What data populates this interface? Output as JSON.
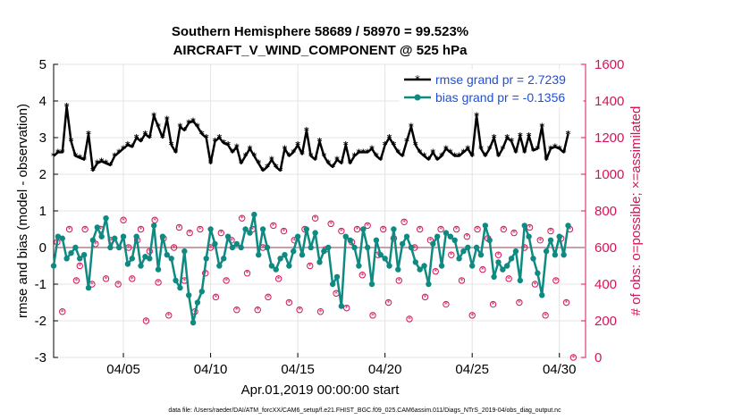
{
  "colors": {
    "rmse": "#000000",
    "bias": "#0f8a82",
    "obs": "#d4145a",
    "zero": "#c8a0a8",
    "legend_text": "#1f4fd8",
    "right_axis": "#d4145a"
  },
  "footer": "data file: /Users/raeder/DAI/ATM_forcXX/CAM6_setup/f.e21.FHIST_BGC.f09_025.CAM6assim.011/Diags_NTrS_2019-04/obs_diag_output.nc",
  "chart_data": {
    "type": "line",
    "title": "Southern Hemisphere 58689 / 58970 = 99.523%",
    "subtitle": "AIRCRAFT_V_WIND_COMPONENT @ 525 hPa",
    "xlabel": "Apr.01,2019 00:00:00 start",
    "ylabel": "rmse and bias (model - observation)",
    "y2label": "# of obs: o=possible; ×=assimilated",
    "xlim": [
      1,
      31.5
    ],
    "ylim": [
      -3,
      5
    ],
    "y2lim": [
      0,
      1600
    ],
    "x_ticks": [
      5,
      10,
      15,
      20,
      25,
      30
    ],
    "x_tick_labels": [
      "04/05",
      "04/10",
      "04/15",
      "04/20",
      "04/25",
      "04/30"
    ],
    "y_ticks": [
      -3,
      -2,
      -1,
      0,
      1,
      2,
      3,
      4,
      5
    ],
    "y2_ticks": [
      0,
      200,
      400,
      600,
      800,
      1000,
      1200,
      1400,
      1600
    ],
    "legend": [
      {
        "label": "rmse grand pr = 2.7239",
        "series": "rmse"
      },
      {
        "label": "bias grand pr = -0.1356",
        "series": "bias"
      }
    ],
    "series": [
      {
        "name": "rmse",
        "x": [
          1.0,
          1.25,
          1.5,
          1.75,
          2.0,
          2.25,
          2.5,
          2.75,
          3.0,
          3.25,
          3.5,
          3.75,
          4.0,
          4.25,
          4.5,
          4.75,
          5.0,
          5.25,
          5.5,
          5.75,
          6.0,
          6.25,
          6.5,
          6.75,
          7.0,
          7.25,
          7.5,
          7.75,
          8.0,
          8.25,
          8.5,
          8.75,
          9.0,
          9.25,
          9.5,
          9.75,
          10.0,
          10.25,
          10.5,
          10.75,
          11.0,
          11.25,
          11.5,
          11.75,
          12.0,
          12.25,
          12.5,
          12.75,
          13.0,
          13.25,
          13.5,
          13.75,
          14.0,
          14.25,
          14.5,
          14.75,
          15.0,
          15.25,
          15.5,
          15.75,
          16.0,
          16.25,
          16.5,
          16.75,
          17.0,
          17.25,
          17.5,
          17.75,
          18.0,
          18.25,
          18.5,
          18.75,
          19.0,
          19.25,
          19.5,
          19.75,
          20.0,
          20.25,
          20.5,
          20.75,
          21.0,
          21.25,
          21.5,
          21.75,
          22.0,
          22.25,
          22.5,
          22.75,
          23.0,
          23.25,
          23.5,
          23.75,
          24.0,
          24.25,
          24.5,
          24.75,
          25.0,
          25.25,
          25.5,
          25.75,
          26.0,
          26.25,
          26.5,
          26.75,
          27.0,
          27.25,
          27.5,
          27.75,
          28.0,
          28.25,
          28.5,
          28.75,
          29.0,
          29.25,
          29.5,
          29.75,
          30.0,
          30.25,
          30.5
        ],
        "values": [
          2.5,
          2.6,
          2.6,
          3.85,
          2.9,
          2.5,
          2.45,
          2.4,
          3.1,
          2.1,
          2.3,
          2.35,
          2.3,
          2.25,
          2.5,
          2.6,
          2.7,
          2.8,
          2.75,
          3.0,
          2.9,
          3.1,
          3.0,
          3.6,
          3.3,
          3.0,
          3.5,
          2.8,
          2.6,
          3.3,
          3.2,
          3.4,
          3.45,
          3.3,
          3.1,
          3.0,
          2.3,
          2.9,
          3.0,
          2.85,
          2.8,
          2.6,
          2.75,
          2.3,
          2.5,
          2.7,
          2.5,
          2.3,
          2.1,
          2.2,
          2.4,
          2.2,
          2.1,
          2.7,
          2.5,
          2.6,
          2.8,
          2.55,
          3.2,
          2.5,
          2.4,
          2.9,
          2.5,
          2.3,
          2.2,
          2.4,
          2.3,
          2.8,
          2.3,
          2.5,
          2.6,
          2.6,
          2.6,
          2.7,
          2.5,
          2.4,
          2.8,
          3.0,
          2.8,
          2.6,
          2.5,
          2.9,
          3.3,
          2.8,
          2.6,
          2.5,
          2.4,
          2.6,
          2.4,
          2.5,
          2.7,
          2.6,
          2.5,
          2.5,
          2.6,
          2.7,
          2.5,
          3.6,
          2.7,
          2.5,
          2.7,
          3.0,
          2.5,
          2.7,
          3.0,
          2.9,
          2.6,
          3.05,
          2.6,
          3.05,
          2.65,
          2.7,
          3.3,
          2.4,
          2.7,
          2.75,
          2.7,
          2.6,
          3.1
        ],
        "color": "#000000",
        "marker": "asterisk"
      },
      {
        "name": "bias",
        "x": [
          1.0,
          1.25,
          1.5,
          1.75,
          2.0,
          2.25,
          2.5,
          2.75,
          3.0,
          3.25,
          3.5,
          3.75,
          4.0,
          4.25,
          4.5,
          4.75,
          5.0,
          5.25,
          5.5,
          5.75,
          6.0,
          6.25,
          6.5,
          6.75,
          7.0,
          7.25,
          7.5,
          7.75,
          8.0,
          8.25,
          8.5,
          8.75,
          9.0,
          9.25,
          9.5,
          9.75,
          10.0,
          10.25,
          10.5,
          10.75,
          11.0,
          11.25,
          11.5,
          11.75,
          12.0,
          12.25,
          12.5,
          12.75,
          13.0,
          13.25,
          13.5,
          13.75,
          14.0,
          14.25,
          14.5,
          14.75,
          15.0,
          15.25,
          15.5,
          15.75,
          16.0,
          16.25,
          16.5,
          16.75,
          17.0,
          17.25,
          17.5,
          17.75,
          18.0,
          18.25,
          18.5,
          18.75,
          19.0,
          19.25,
          19.5,
          19.75,
          20.0,
          20.25,
          20.5,
          20.75,
          21.0,
          21.25,
          21.5,
          21.75,
          22.0,
          22.25,
          22.5,
          22.75,
          23.0,
          23.25,
          23.5,
          23.75,
          24.0,
          24.25,
          24.5,
          24.75,
          25.0,
          25.25,
          25.5,
          25.75,
          26.0,
          26.25,
          26.5,
          26.75,
          27.0,
          27.25,
          27.5,
          27.75,
          28.0,
          28.25,
          28.5,
          28.75,
          29.0,
          29.25,
          29.5,
          29.75,
          30.0,
          30.25,
          30.5
        ],
        "values": [
          -0.5,
          0.3,
          0.25,
          -0.3,
          -0.15,
          0.0,
          -0.3,
          -0.2,
          -1.1,
          0.2,
          0.55,
          0.3,
          0.8,
          0.0,
          0.25,
          0.0,
          0.3,
          -0.45,
          -0.3,
          0.3,
          -0.5,
          -0.25,
          -0.3,
          0.6,
          -0.6,
          0.3,
          -0.2,
          -0.3,
          -0.9,
          -1.1,
          -0.1,
          -1.3,
          -2.05,
          -1.5,
          -1.2,
          -0.3,
          0.5,
          0.1,
          -0.5,
          -0.3,
          0.3,
          0.0,
          0.1,
          0.0,
          0.5,
          0.4,
          0.9,
          -0.2,
          0.5,
          0.0,
          -0.5,
          -0.6,
          -0.3,
          -0.2,
          -0.5,
          -0.1,
          0.3,
          -0.2,
          0.5,
          0.0,
          0.4,
          -0.4,
          -0.1,
          0.0,
          -1.0,
          -0.8,
          -1.6,
          0.3,
          0.2,
          0.0,
          -0.5,
          0.5,
          0.0,
          -1.0,
          0.2,
          -0.2,
          -0.3,
          -0.5,
          0.5,
          -0.6,
          0.1,
          0.3,
          0.0,
          -0.4,
          -0.6,
          -0.5,
          -1.0,
          0.1,
          0.3,
          -0.5,
          0.4,
          0.3,
          0.2,
          -0.3,
          -0.1,
          0.0,
          -0.5,
          0.0,
          -0.2,
          0.6,
          0.2,
          -0.8,
          -0.4,
          -0.6,
          -0.5,
          -0.3,
          -0.1,
          -0.9,
          0.6,
          0.3,
          -0.3,
          -0.7,
          -1.3,
          -0.1,
          0.2,
          -0.2,
          0.3,
          -0.2,
          0.6
        ],
        "color": "#0f8a82",
        "marker": "circle"
      }
    ],
    "obs_possible": {
      "axis": "right",
      "x": [
        1.2,
        1.5,
        1.9,
        2.3,
        2.5,
        2.8,
        3.2,
        3.4,
        3.7,
        4.0,
        4.3,
        4.7,
        5.0,
        5.3,
        5.5,
        5.8,
        6.0,
        6.3,
        6.5,
        6.8,
        7.0,
        7.3,
        7.6,
        7.9,
        8.2,
        8.5,
        8.8,
        9.1,
        9.4,
        9.7,
        10.0,
        10.3,
        10.6,
        10.9,
        11.2,
        11.5,
        11.8,
        12.1,
        12.4,
        12.7,
        13.0,
        13.3,
        13.6,
        13.9,
        14.2,
        14.5,
        14.8,
        15.1,
        15.4,
        15.7,
        16.0,
        16.3,
        16.6,
        16.9,
        17.2,
        17.5,
        17.8,
        18.1,
        18.4,
        18.7,
        19.0,
        19.3,
        19.6,
        19.9,
        20.2,
        20.5,
        20.8,
        21.1,
        21.4,
        21.7,
        22.0,
        22.3,
        22.6,
        22.9,
        23.2,
        23.5,
        23.8,
        24.1,
        24.4,
        24.7,
        25.0,
        25.3,
        25.6,
        25.9,
        26.2,
        26.5,
        26.8,
        27.1,
        27.4,
        27.7,
        28.0,
        28.3,
        28.6,
        28.9,
        29.2,
        29.5,
        29.8,
        30.1,
        30.4,
        30.6,
        30.8
      ],
      "values": [
        630,
        250,
        700,
        420,
        500,
        700,
        400,
        620,
        700,
        430,
        640,
        400,
        750,
        600,
        430,
        640,
        700,
        200,
        580,
        750,
        410,
        650,
        230,
        600,
        710,
        420,
        680,
        250,
        700,
        460,
        600,
        330,
        680,
        420,
        640,
        260,
        760,
        460,
        700,
        260,
        600,
        330,
        720,
        430,
        690,
        300,
        640,
        260,
        700,
        500,
        760,
        250,
        590,
        730,
        350,
        690,
        270,
        630,
        700,
        450,
        720,
        230,
        560,
        700,
        300,
        650,
        420,
        740,
        210,
        600,
        700,
        330,
        640,
        470,
        700,
        290,
        560,
        700,
        420,
        660,
        230,
        700,
        480,
        650,
        290,
        560,
        700,
        430,
        680,
        300,
        600,
        710,
        400,
        640,
        230,
        690,
        420,
        650,
        300,
        700,
        0
      ],
      "marker": "circle-open"
    }
  }
}
